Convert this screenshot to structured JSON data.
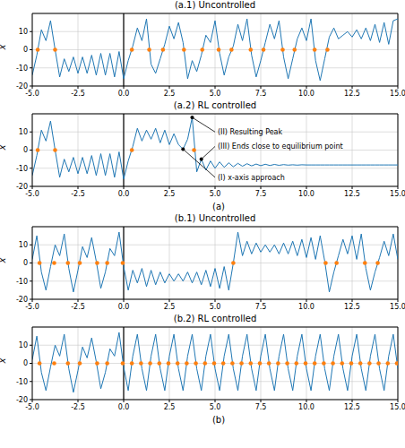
{
  "chart_data": [
    {
      "type": "line",
      "title": "(a.1) Uncontrolled",
      "ylabel": "x",
      "xlim": [
        -5,
        15
      ],
      "ylim": [
        -20,
        20
      ],
      "xticks": [
        {
          "value": -5,
          "label": "-5.0"
        },
        -2.5,
        {
          "value": 0,
          "label": "0.0"
        },
        2.5,
        {
          "value": 5,
          "label": "5.0"
        },
        7.5,
        {
          "value": 10,
          "label": "10.0"
        },
        12.5,
        {
          "value": 15,
          "label": "15.0"
        }
      ],
      "yticks": [
        -20,
        -10,
        0,
        10
      ],
      "grid": true,
      "vline": 0,
      "series": [
        {
          "type": "line",
          "color": "#1f77b4",
          "x": [
            -5,
            -4.75,
            -4.5,
            -4.25,
            -4,
            -3.75,
            -3.5,
            -3.25,
            -3,
            -2.75,
            -2.5,
            -2.25,
            -2,
            -1.75,
            -1.5,
            -1.25,
            -1,
            -0.75,
            -0.5,
            -0.25,
            0,
            0.25,
            0.5,
            0.75,
            1,
            1.25,
            1.5,
            1.75,
            2,
            2.25,
            2.5,
            2.75,
            3,
            3.25,
            3.5,
            3.75,
            4,
            4.25,
            4.5,
            4.75,
            5,
            5.25,
            5.5,
            5.75,
            6,
            6.25,
            6.5,
            6.75,
            7,
            7.25,
            7.5,
            7.75,
            8,
            8.25,
            8.5,
            8.75,
            9,
            9.25,
            9.5,
            9.75,
            10,
            10.25,
            10.5,
            10.75,
            11,
            11.25,
            11.5,
            11.75,
            12,
            12.25,
            12.5,
            12.75,
            13,
            13.25,
            13.5,
            13.75,
            14,
            14.25,
            14.5,
            14.75,
            15
          ],
          "values": [
            -14,
            -3,
            11,
            5,
            16,
            0,
            -15,
            -5,
            -12,
            -4,
            -13,
            -4,
            -13,
            -3,
            -14,
            -2,
            -14,
            -2,
            -15,
            -1,
            -16,
            -6,
            2,
            12,
            5,
            17,
            -8,
            -13,
            -5,
            3,
            13,
            6,
            15,
            4,
            -16,
            -6,
            -12,
            -3,
            8,
            4,
            16,
            -2,
            -14,
            -4,
            2,
            14,
            5,
            17,
            -3,
            -15,
            -6,
            4,
            14,
            6,
            16,
            -4,
            -16,
            -5,
            6,
            12,
            5,
            17,
            -6,
            -17,
            -5,
            7,
            12,
            6,
            8,
            10,
            7,
            11,
            6,
            12,
            5,
            14,
            4,
            15,
            3,
            16,
            17
          ]
        },
        {
          "type": "scatter",
          "color": "#ff7f0e",
          "marker": "circle",
          "x": [
            -4.7,
            -3.75,
            0.45,
            1.4,
            2.15,
            3.3,
            4.3,
            5.2,
            5.9,
            6.95,
            7.65,
            8.7,
            9.35,
            10.45,
            11.15
          ],
          "values": [
            0,
            0,
            0,
            0,
            0,
            0,
            0,
            0,
            0,
            0,
            0,
            0,
            0,
            0,
            0
          ]
        }
      ]
    },
    {
      "type": "line",
      "title": "(a.2) RL controlled",
      "ylabel": "x",
      "caption": "(a)",
      "xlim": [
        -5,
        15
      ],
      "ylim": [
        -20,
        20
      ],
      "xticks": [
        {
          "value": -5,
          "label": "-5.0"
        },
        -2.5,
        {
          "value": 0,
          "label": "0.0"
        },
        2.5,
        {
          "value": 5,
          "label": "5.0"
        },
        7.5,
        {
          "value": 10,
          "label": "10.0"
        },
        12.5,
        {
          "value": 15,
          "label": "15.0"
        }
      ],
      "yticks": [
        -20,
        -10,
        0,
        10
      ],
      "grid": true,
      "vline": 0,
      "annotations": [
        {
          "text": "(I) x-axis approach",
          "xy": [
            3.25,
            0.5
          ],
          "xytext": [
            5,
            -15
          ]
        },
        {
          "text": "(II) Resulting Peak",
          "xy": [
            3.75,
            18
          ],
          "xytext": [
            5,
            10
          ]
        },
        {
          "text": "(III) Ends close to equilibrium point",
          "xy": [
            4.25,
            -5
          ],
          "xytext": [
            5,
            2
          ]
        }
      ],
      "series": [
        {
          "type": "line",
          "color": "#1f77b4",
          "x": [
            -5,
            -4.75,
            -4.5,
            -4.25,
            -4,
            -3.75,
            -3.5,
            -3.25,
            -3,
            -2.75,
            -2.5,
            -2.25,
            -2,
            -1.75,
            -1.5,
            -1.25,
            -1,
            -0.75,
            -0.5,
            -0.25,
            0,
            0.25,
            0.5,
            0.75,
            1,
            1.25,
            1.5,
            1.75,
            2,
            2.25,
            2.5,
            2.75,
            3,
            3.25,
            3.5,
            3.75,
            4,
            4.25,
            4.5,
            4.75,
            5,
            5.25,
            5.5,
            5.75,
            6,
            6.25,
            6.5,
            6.75,
            7,
            7.25,
            7.5,
            7.75,
            8,
            8.25,
            8.5,
            8.75,
            9,
            9.25,
            9.5,
            9.75,
            10,
            10.25,
            10.5,
            10.75,
            11,
            11.25,
            11.5,
            11.75,
            12,
            12.25,
            12.5,
            12.75,
            13,
            13.25,
            13.5,
            13.75,
            14,
            14.25,
            14.5,
            14.75,
            15
          ],
          "values": [
            -14,
            -3,
            11,
            5,
            16,
            0,
            -15,
            -5,
            -12,
            -4,
            -13,
            -4,
            -13,
            -3,
            -14,
            -2,
            -14,
            -2,
            -15,
            -1,
            -16,
            -6,
            2,
            12,
            5,
            11,
            6,
            12,
            4,
            11,
            3,
            9,
            3,
            0.5,
            6,
            18,
            -12,
            -5,
            -11,
            -6,
            -10,
            -6.5,
            -9.5,
            -7,
            -9.2,
            -7.3,
            -8.9,
            -7.5,
            -8.7,
            -7.7,
            -8.6,
            -7.8,
            -8.5,
            -7.9,
            -8.4,
            -8,
            -8.3,
            -8.1,
            -8.3,
            -8.1,
            -8.2,
            -8.2,
            -8.2,
            -8.2,
            -8.2,
            -8.2,
            -8.2,
            -8.2,
            -8.2,
            -8.2,
            -8.2,
            -8.2,
            -8.2,
            -8.2,
            -8.2,
            -8.2,
            -8.2,
            -8.2,
            -8.2,
            -8.2,
            -8.2
          ]
        },
        {
          "type": "scatter",
          "color": "#ff7f0e",
          "marker": "circle",
          "x": [
            -4.7,
            -3.75,
            0.45,
            3.85
          ],
          "values": [
            0,
            0,
            0,
            0
          ]
        }
      ]
    },
    {
      "type": "line",
      "title": "(b.1) Uncontrolled",
      "ylabel": "x",
      "xlim": [
        -5,
        15
      ],
      "ylim": [
        -20,
        20
      ],
      "xticks": [
        {
          "value": -5,
          "label": "-5.0"
        },
        -2.5,
        {
          "value": 0,
          "label": "0.0"
        },
        2.5,
        {
          "value": 5,
          "label": "5.0"
        },
        7.5,
        {
          "value": 10,
          "label": "10.0"
        },
        12.5,
        {
          "value": 15,
          "label": "15.0"
        }
      ],
      "yticks": [
        -20,
        -10,
        0,
        10
      ],
      "grid": true,
      "vline": 0,
      "series": [
        {
          "type": "line",
          "color": "#1f77b4",
          "x": [
            -5,
            -4.75,
            -4.5,
            -4.25,
            -4,
            -3.75,
            -3.5,
            -3.25,
            -3,
            -2.75,
            -2.5,
            -2.25,
            -2,
            -1.75,
            -1.5,
            -1.25,
            -1,
            -0.75,
            -0.5,
            -0.25,
            0,
            0.25,
            0.5,
            0.75,
            1,
            1.25,
            1.5,
            1.75,
            2,
            2.25,
            2.5,
            2.75,
            3,
            3.25,
            3.5,
            3.75,
            4,
            4.25,
            4.5,
            4.75,
            5,
            5.25,
            5.5,
            5.75,
            6,
            6.25,
            6.5,
            6.75,
            7,
            7.25,
            7.5,
            7.75,
            8,
            8.25,
            8.5,
            8.75,
            9,
            9.25,
            9.5,
            9.75,
            10,
            10.25,
            10.5,
            10.75,
            11,
            11.25,
            11.5,
            11.75,
            12,
            12.25,
            12.5,
            12.75,
            13,
            13.25,
            13.5,
            13.75,
            14,
            14.25,
            14.5,
            14.75,
            15
          ],
          "values": [
            2,
            15,
            -5,
            -15,
            -2,
            10,
            4,
            16,
            -3,
            -16,
            -4,
            9,
            3,
            14,
            1,
            -14,
            -5,
            8,
            4,
            17,
            -2,
            -15,
            -4,
            -11,
            -3,
            -13,
            -4,
            -12,
            -5,
            -11,
            -6,
            -10,
            -6,
            -10,
            -5,
            -11,
            -5,
            -12,
            -4,
            -13,
            -3,
            -14,
            -2,
            -15,
            0,
            17,
            4,
            12,
            5,
            11,
            6,
            10,
            6,
            10,
            5,
            11,
            5,
            12,
            4,
            13,
            3,
            14,
            2,
            15,
            1,
            -16,
            -5,
            4,
            13,
            5,
            15,
            2,
            16,
            -3,
            -15,
            -5,
            3,
            12,
            4,
            16,
            2
          ]
        },
        {
          "type": "scatter",
          "color": "#ff7f0e",
          "marker": "circle",
          "x": [
            -4.6,
            -3.8,
            -3.05,
            -2.4,
            -1.45,
            -0.9,
            -0.05,
            6,
            11.05,
            11.65,
            13.2,
            13.9
          ],
          "values": [
            0,
            0,
            0,
            0,
            0,
            0,
            0,
            0,
            0,
            0,
            0,
            0
          ]
        }
      ]
    },
    {
      "type": "line",
      "title": "(b.2) RL controlled",
      "ylabel": "x",
      "caption": "(b)",
      "xlim": [
        -5,
        15
      ],
      "ylim": [
        -20,
        20
      ],
      "xticks": [
        {
          "value": -5,
          "label": "-5.0"
        },
        -2.5,
        {
          "value": 0,
          "label": "0.0"
        },
        2.5,
        {
          "value": 5,
          "label": "5.0"
        },
        7.5,
        {
          "value": 10,
          "label": "10.0"
        },
        12.5,
        {
          "value": 15,
          "label": "15.0"
        }
      ],
      "yticks": [
        -20,
        -10,
        0,
        10
      ],
      "grid": true,
      "vline": 0,
      "series": [
        {
          "type": "line",
          "color": "#1f77b4",
          "x": [
            -5,
            -4.75,
            -4.5,
            -4.25,
            -4,
            -3.75,
            -3.5,
            -3.25,
            -3,
            -2.75,
            -2.5,
            -2.25,
            -2,
            -1.75,
            -1.5,
            -1.25,
            -1,
            -0.75,
            -0.5,
            -0.25,
            0,
            0.25,
            0.5,
            0.75,
            1,
            1.25,
            1.5,
            1.75,
            2,
            2.25,
            2.5,
            2.75,
            3,
            3.25,
            3.5,
            3.75,
            4,
            4.25,
            4.5,
            4.75,
            5,
            5.25,
            5.5,
            5.75,
            6,
            6.25,
            6.5,
            6.75,
            7,
            7.25,
            7.5,
            7.75,
            8,
            8.25,
            8.5,
            8.75,
            9,
            9.25,
            9.5,
            9.75,
            10,
            10.25,
            10.5,
            10.75,
            11,
            11.25,
            11.5,
            11.75,
            12,
            12.25,
            12.5,
            12.75,
            13,
            13.25,
            13.5,
            13.75,
            14,
            14.25,
            14.5,
            14.75,
            15
          ],
          "values": [
            2,
            15,
            -5,
            -15,
            -2,
            10,
            4,
            16,
            -3,
            -16,
            -4,
            9,
            3,
            14,
            1,
            -14,
            -5,
            8,
            4,
            17,
            -2,
            -15,
            4,
            16,
            -3,
            -15,
            4,
            16,
            -3,
            -15,
            4,
            16,
            -3,
            -15,
            4,
            16,
            -3,
            -15,
            4,
            16,
            -3,
            -15,
            4,
            16,
            -3,
            -15,
            4,
            16,
            -3,
            -15,
            4,
            16,
            -3,
            -15,
            4,
            16,
            -3,
            -15,
            4,
            16,
            -3,
            -15,
            4,
            16,
            -3,
            -15,
            4,
            16,
            -3,
            -15,
            4,
            16,
            -3,
            -15,
            4,
            16,
            -3,
            -15,
            4,
            16,
            -3
          ]
        },
        {
          "type": "scatter",
          "color": "#ff7f0e",
          "marker": "circle",
          "x": [
            -4.6,
            -3.8,
            -3.05,
            -2.4,
            -1.45,
            -0.9,
            -0.05,
            0.45,
            0.95,
            1.45,
            1.95,
            2.45,
            2.95,
            3.45,
            3.95,
            4.45,
            4.95,
            5.45,
            5.95,
            6.45,
            6.95,
            7.45,
            7.95,
            8.45,
            8.95,
            9.45,
            9.95,
            10.45,
            10.95,
            11.45,
            11.95,
            12.45,
            12.95,
            13.45,
            13.95,
            14.45,
            14.95
          ],
          "values": [
            0,
            0,
            0,
            0,
            0,
            0,
            0,
            0,
            0,
            0,
            0,
            0,
            0,
            0,
            0,
            0,
            0,
            0,
            0,
            0,
            0,
            0,
            0,
            0,
            0,
            0,
            0,
            0,
            0,
            0,
            0,
            0,
            0,
            0,
            0,
            0,
            0
          ]
        }
      ]
    }
  ]
}
